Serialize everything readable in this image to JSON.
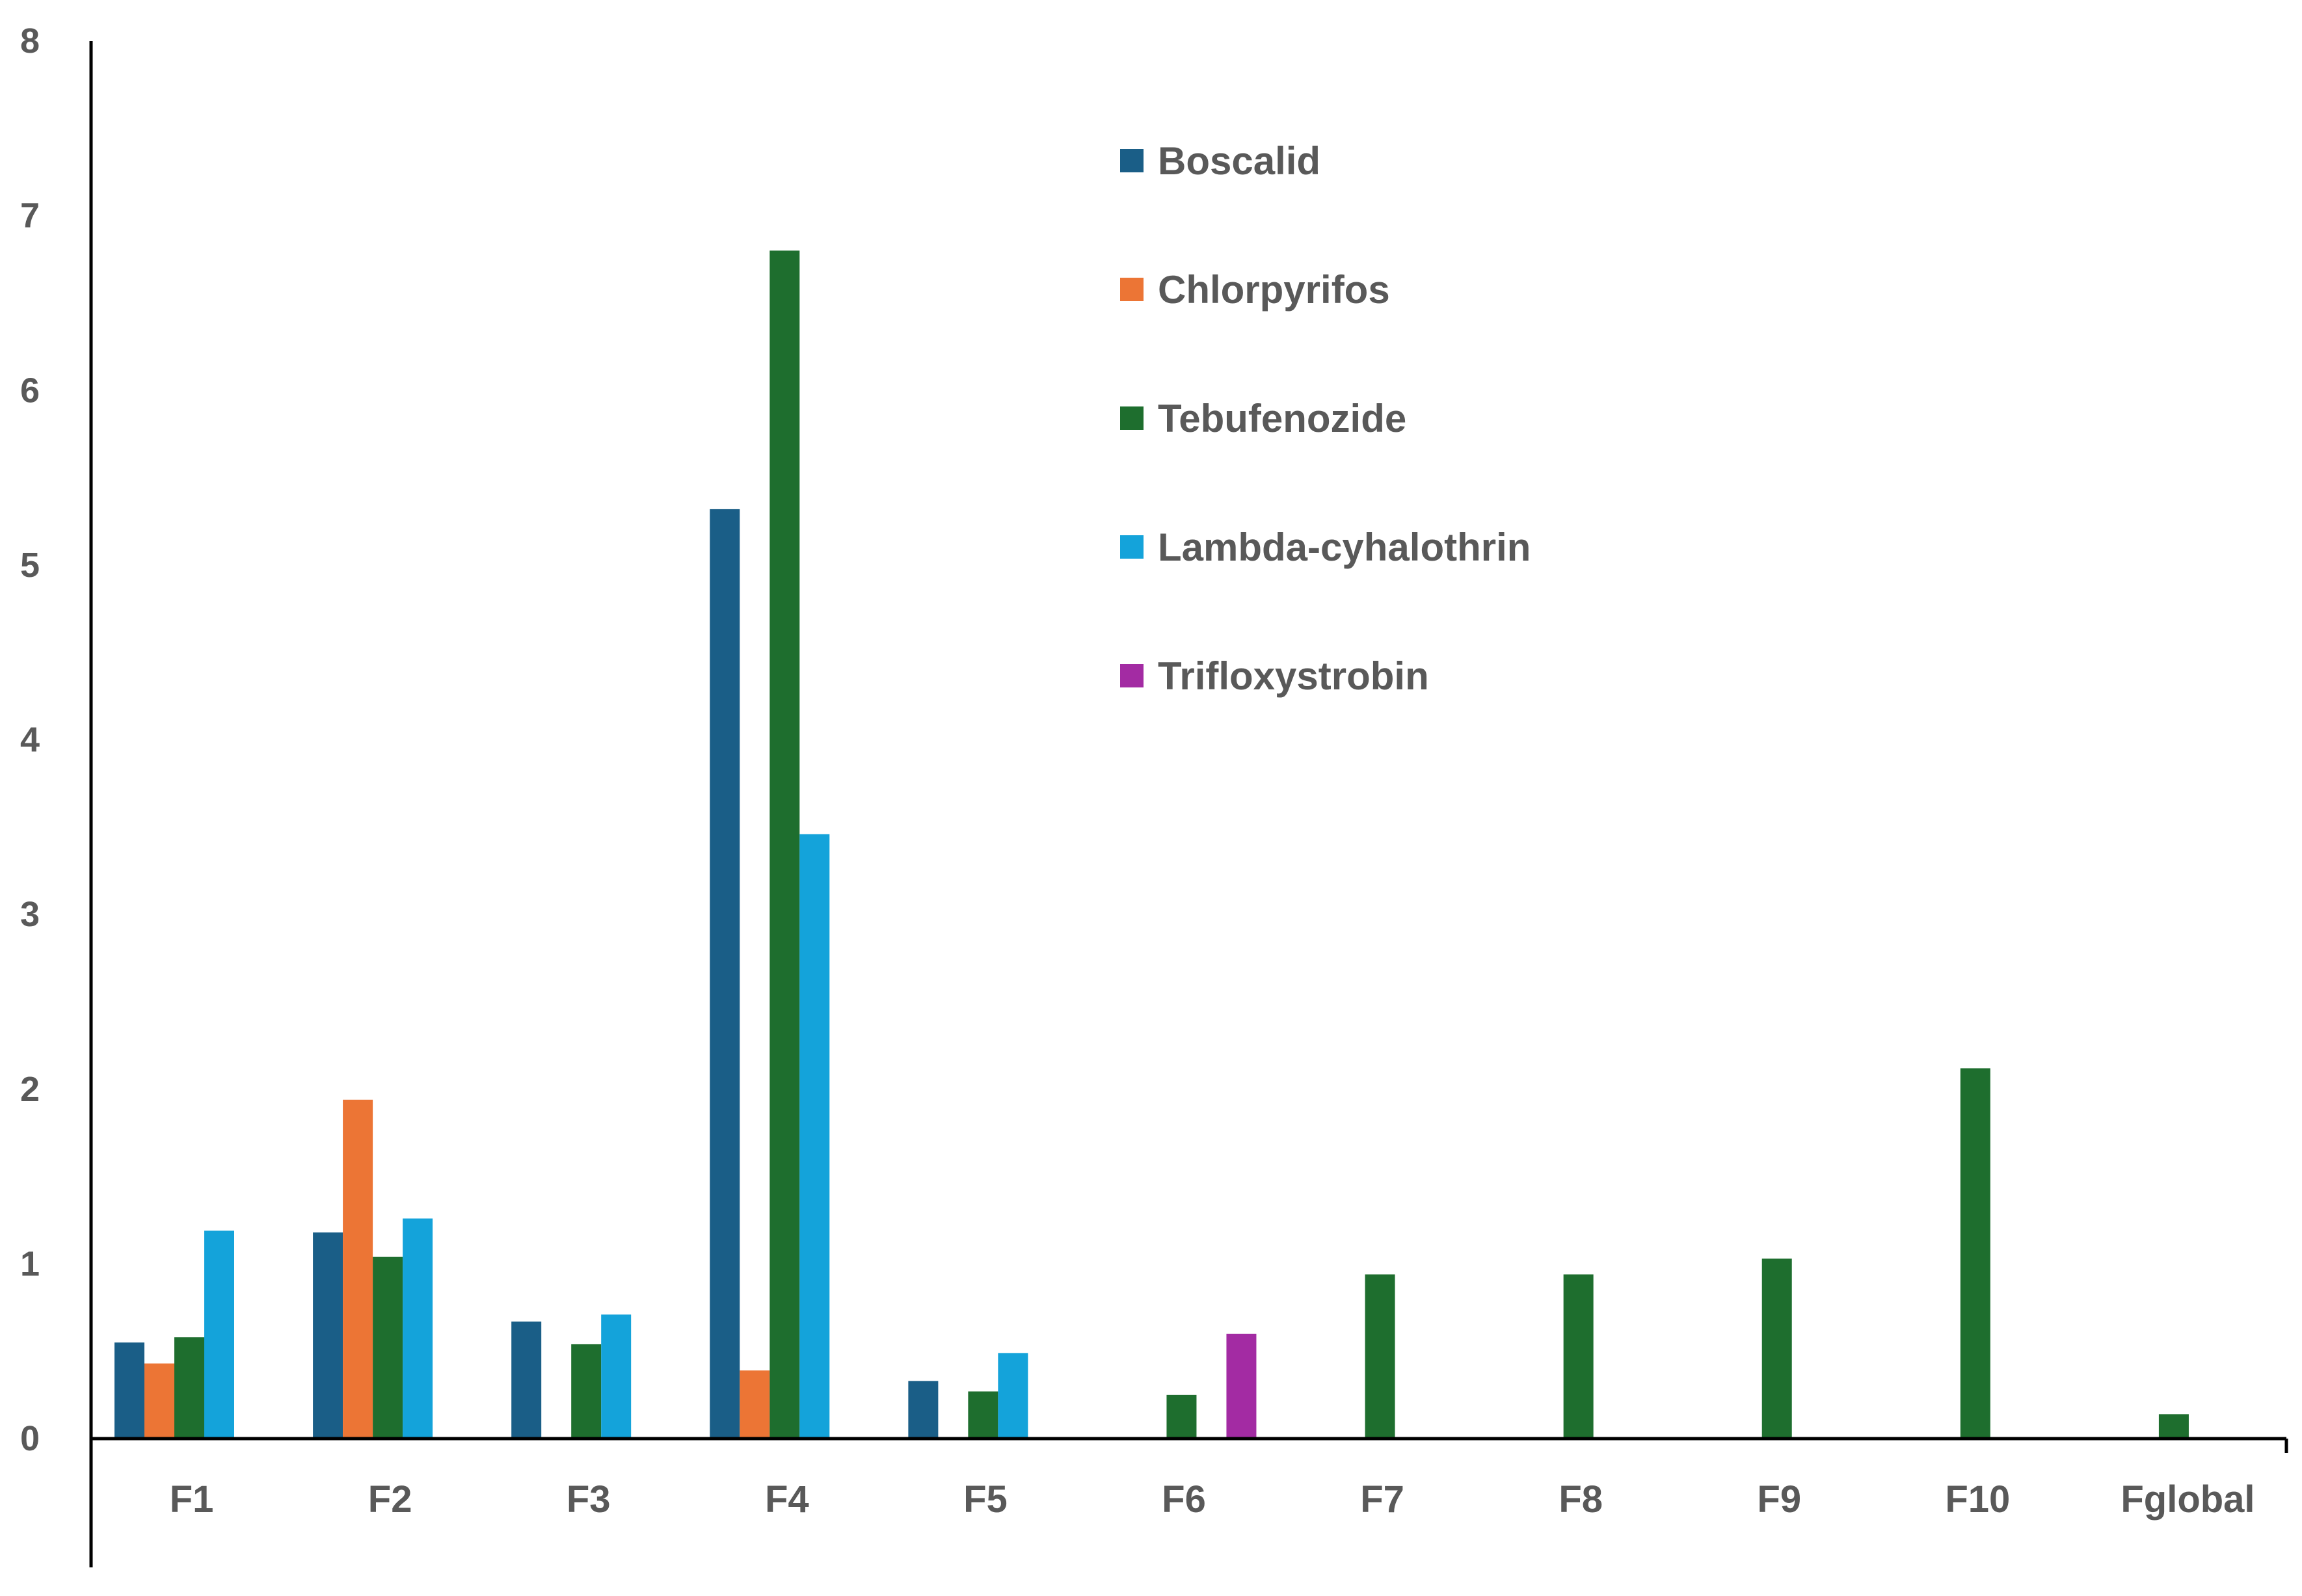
{
  "chart_data": {
    "type": "bar",
    "title": "",
    "xlabel": "",
    "ylabel": "",
    "ylim": [
      0,
      8
    ],
    "yticks": [
      0,
      1,
      2,
      3,
      4,
      5,
      6,
      7,
      8
    ],
    "grid": false,
    "legend_position": "top-center",
    "categories": [
      "F1",
      "F2",
      "F3",
      "F4",
      "F5",
      "F6",
      "F7",
      "F8",
      "F9",
      "F10",
      "Fglobal"
    ],
    "series": [
      {
        "name": "Boscalid",
        "color": "#1a5e87",
        "values": [
          0.55,
          1.18,
          0.67,
          5.32,
          0.33,
          null,
          null,
          null,
          null,
          null,
          null
        ]
      },
      {
        "name": "Chlorpyrifos",
        "color": "#ec7535",
        "values": [
          0.43,
          1.94,
          null,
          0.39,
          null,
          null,
          null,
          null,
          null,
          null,
          null
        ]
      },
      {
        "name": "Tebufenozide",
        "color": "#1e6e2e",
        "values": [
          0.58,
          1.04,
          0.54,
          6.8,
          0.27,
          0.25,
          0.94,
          0.94,
          1.03,
          2.12,
          0.14
        ]
      },
      {
        "name": "Lambda-cyhalothrin",
        "color": "#14a3da",
        "values": [
          1.19,
          1.26,
          0.71,
          3.46,
          0.49,
          null,
          null,
          null,
          null,
          null,
          null
        ]
      },
      {
        "name": "Trifloxystrobin",
        "color": "#a32ba3",
        "values": [
          null,
          null,
          null,
          null,
          null,
          0.6,
          null,
          null,
          null,
          null,
          null
        ]
      }
    ]
  }
}
